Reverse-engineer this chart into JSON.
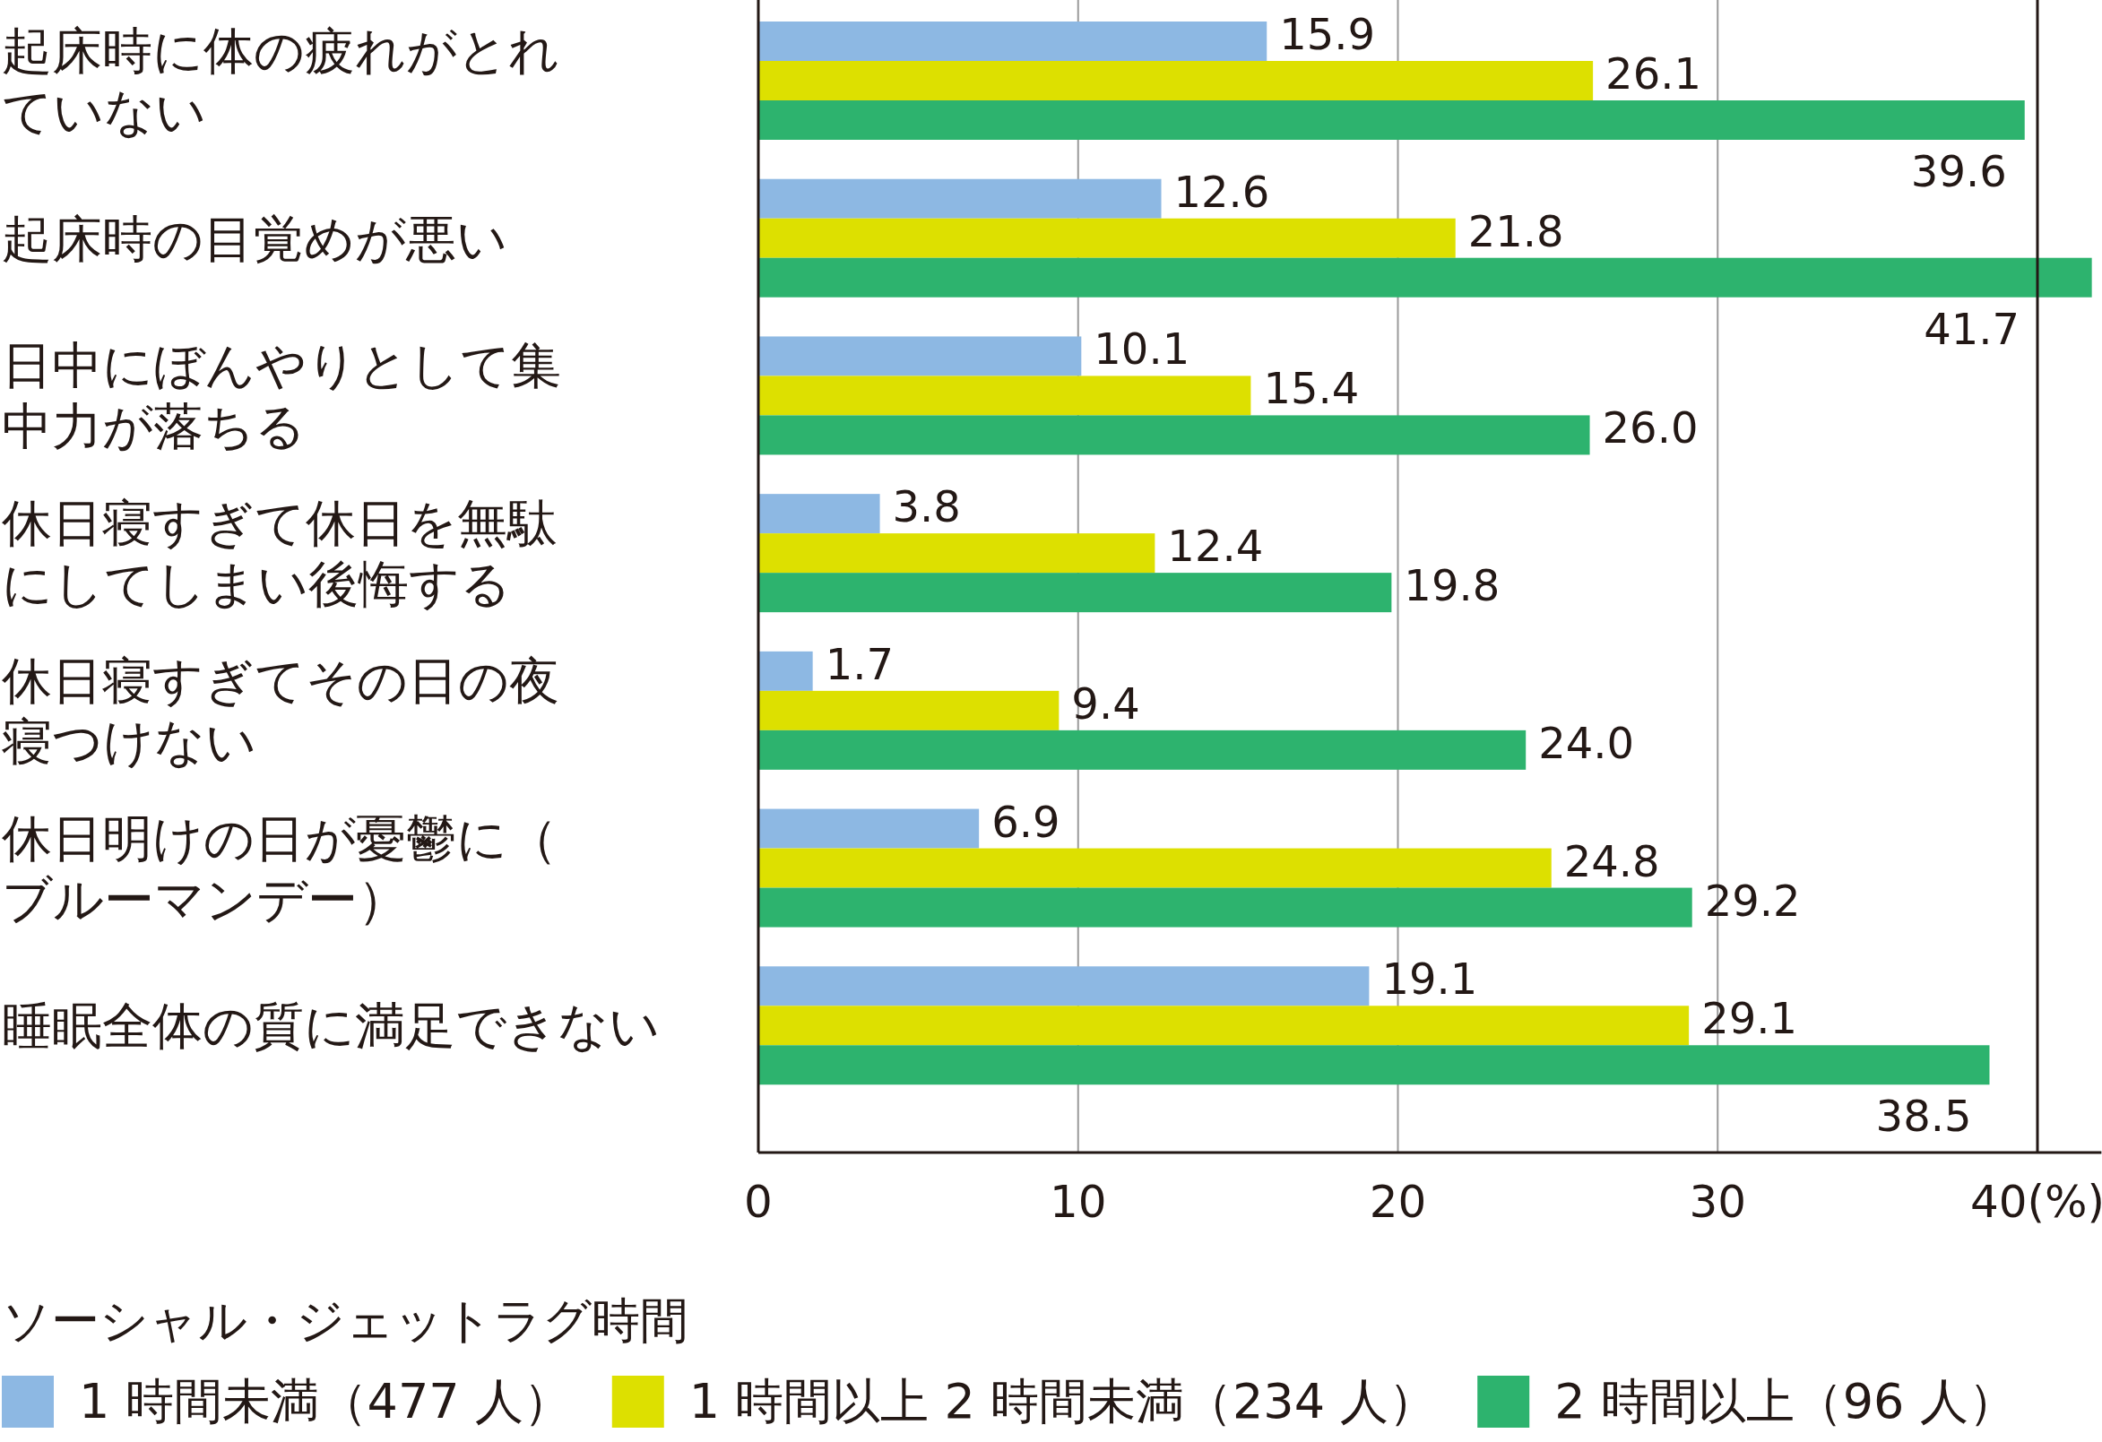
{
  "chart_data": {
    "type": "bar",
    "orientation": "horizontal",
    "categories": [
      "起床時に体の疲れがとれていない",
      "起床時の目覚めが悪い",
      "日中にぼんやりとして集中力が落ちる",
      "休日寝すぎて休日を無駄にしてしまい後悔する",
      "休日寝すぎてその日の夜寝つけない",
      "休日明けの日が憂鬱に（ブルーマンデー）",
      "睡眠全体の質に満足できない"
    ],
    "ref_lines": [
      {
        "axis": "x",
        "value": 40,
        "color": "#231815"
      }
    ],
    "series": [
      {
        "name": "1 時間未満（477 人）",
        "color": "#8db8e3",
        "values": [
          15.9,
          12.6,
          10.1,
          3.8,
          1.7,
          6.9,
          19.1
        ],
        "value_labels": [
          "15.9",
          "12.6",
          "10.1",
          "3.8",
          "1.7",
          "6.9",
          "19.1"
        ]
      },
      {
        "name": "1 時間以上 2 時間未満（234 人）",
        "color": "#dde000",
        "values": [
          26.1,
          21.8,
          15.4,
          12.4,
          9.4,
          24.8,
          29.1
        ],
        "value_labels": [
          "26.1",
          "21.8",
          "15.4",
          "12.4",
          "9.4",
          "24.8",
          "29.1"
        ]
      },
      {
        "name": "2 時間以上（96 人）",
        "color": "#2db36e",
        "values": [
          39.6,
          41.7,
          26.0,
          19.8,
          24.0,
          29.2,
          38.5
        ],
        "value_labels": [
          "39.6",
          "41.7",
          "26.0",
          "19.8",
          "24.0",
          "29.2",
          "38.5"
        ]
      }
    ],
    "xlim": [
      0,
      42
    ],
    "xticks": [
      0,
      10,
      20,
      30,
      {
        "value": 40,
        "label": "40(%)"
      }
    ],
    "grid": "x",
    "legend": "bottom",
    "legend_title": "ソーシャル・ジェットラグ時間"
  }
}
